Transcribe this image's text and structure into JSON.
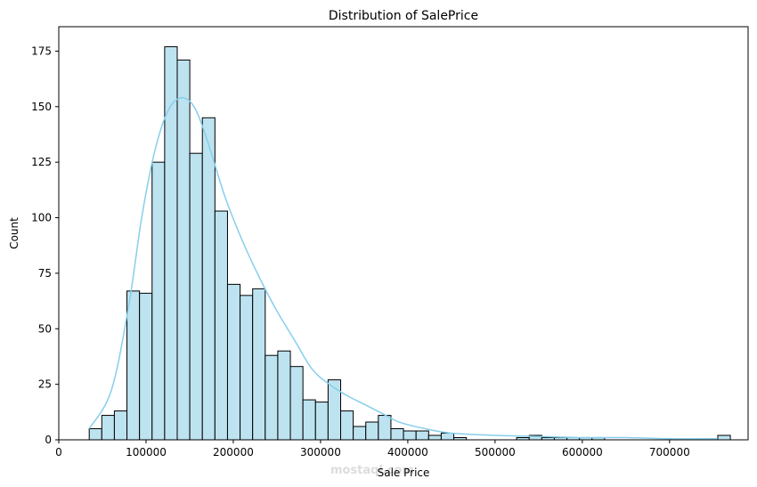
{
  "chart_data": {
    "type": "bar",
    "title": "Distribution of SalePrice",
    "xlabel": "Sale Price",
    "ylabel": "Count",
    "xlim": [
      0,
      790000
    ],
    "ylim": [
      0,
      186
    ],
    "x_ticks": [
      "0",
      "100000",
      "200000",
      "300000",
      "400000",
      "500000",
      "600000",
      "700000"
    ],
    "x_tick_values": [
      0,
      100000,
      200000,
      300000,
      400000,
      500000,
      600000,
      700000
    ],
    "y_ticks": [
      "0",
      "25",
      "50",
      "75",
      "100",
      "125",
      "150",
      "175"
    ],
    "y_tick_values": [
      0,
      25,
      50,
      75,
      100,
      125,
      150,
      175
    ],
    "bin_start": 34900,
    "bin_width": 14407,
    "counts": [
      5,
      11,
      13,
      67,
      66,
      125,
      177,
      171,
      129,
      145,
      103,
      70,
      65,
      68,
      38,
      40,
      33,
      18,
      17,
      27,
      13,
      6,
      8,
      11,
      5,
      4,
      4,
      2,
      3,
      1,
      0,
      0,
      0,
      0,
      1,
      2,
      1,
      1,
      1,
      1,
      1,
      0,
      0,
      0,
      0,
      0,
      0,
      0,
      0,
      0,
      2
    ],
    "kde": [
      [
        34900,
        5
      ],
      [
        60000,
        22
      ],
      [
        80000,
        60
      ],
      [
        95000,
        100
      ],
      [
        110000,
        130
      ],
      [
        125000,
        148
      ],
      [
        140000,
        154
      ],
      [
        155000,
        150
      ],
      [
        170000,
        135
      ],
      [
        190000,
        110
      ],
      [
        210000,
        90
      ],
      [
        230000,
        73
      ],
      [
        250000,
        58
      ],
      [
        270000,
        45
      ],
      [
        290000,
        32
      ],
      [
        310000,
        25
      ],
      [
        330000,
        20
      ],
      [
        350000,
        16
      ],
      [
        370000,
        12
      ],
      [
        390000,
        8
      ],
      [
        420000,
        5
      ],
      [
        450000,
        3
      ],
      [
        500000,
        2
      ],
      [
        550000,
        1.5
      ],
      [
        600000,
        1
      ],
      [
        650000,
        1
      ],
      [
        700000,
        0.5
      ],
      [
        755000,
        0.5
      ]
    ],
    "bar_fill": "#bde3f0",
    "bar_edge": "#000000",
    "kde_color": "#87ceeb",
    "grid": false,
    "watermark": "mostaql.com"
  }
}
